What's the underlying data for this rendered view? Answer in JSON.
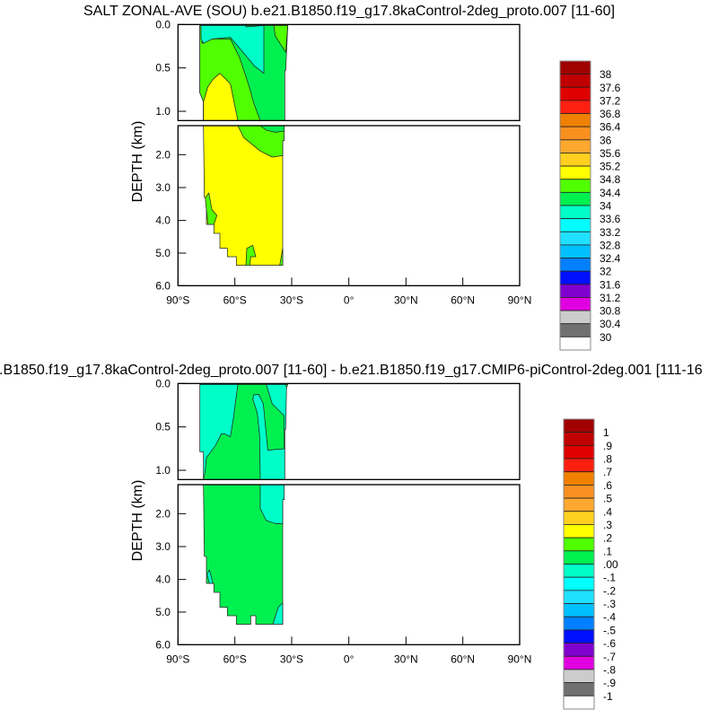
{
  "chart_data": [
    {
      "type": "heatmap",
      "subtype": "filled-contour",
      "title": "SALT ZONAL-AVE (SOU) b.e21.B1850.f19_g17.8kaControl-2deg_proto.007 [11-60]",
      "ylabel": "DEPTH (km)",
      "xlim": [
        -90,
        90
      ],
      "ylim": [
        0,
        6
      ],
      "y_split_km": 1.1,
      "xticks": [
        "90°S",
        "60°S",
        "30°S",
        "0°",
        "30°N",
        "60°N",
        "90°N"
      ],
      "yticks_upper": [
        "0.0",
        "0.5",
        "1.0"
      ],
      "yticks_lower": [
        "2.0",
        "3.0",
        "4.0",
        "5.0",
        "6.0"
      ],
      "colorbar": {
        "labels": [
          "38",
          "37.6",
          "37.2",
          "36.8",
          "36.4",
          "36",
          "35.6",
          "35.2",
          "34.8",
          "34.4",
          "34",
          "33.6",
          "33.2",
          "32.8",
          "32.4",
          "32",
          "31.6",
          "31.2",
          "30.8",
          "30.4",
          "30"
        ],
        "colors": [
          "#A00000",
          "#C00000",
          "#E00000",
          "#FF2010",
          "#F08000",
          "#F89020",
          "#FFA830",
          "#FFD020",
          "#FFFF00",
          "#50FF00",
          "#00F050",
          "#00FFC8",
          "#00FFFF",
          "#20E0FF",
          "#00C0FF",
          "#0080FF",
          "#0010FF",
          "#8000D0",
          "#E000E0",
          "#CCCCCC",
          "#707070",
          "#FFFFFF"
        ]
      }
    },
    {
      "type": "heatmap",
      "subtype": "filled-contour",
      "title": ".B1850.f19_g17.8kaControl-2deg_proto.007 [11-60] - b.e21.B1850.f19_g17.CMIP6-piControl-2deg.001 [111-16",
      "ylabel": "DEPTH (km)",
      "xlim": [
        -90,
        90
      ],
      "ylim": [
        0,
        6
      ],
      "y_split_km": 1.1,
      "xticks": [
        "90°S",
        "60°S",
        "30°S",
        "0°",
        "30°N",
        "60°N",
        "90°N"
      ],
      "yticks_upper": [
        "0.0",
        "0.5",
        "1.0"
      ],
      "yticks_lower": [
        "2.0",
        "3.0",
        "4.0",
        "5.0",
        "6.0"
      ],
      "colorbar": {
        "labels": [
          "1",
          ".9",
          ".8",
          ".7",
          ".6",
          ".5",
          ".4",
          ".3",
          ".2",
          ".1",
          ".00",
          "-.1",
          "-.2",
          "-.3",
          "-.4",
          "-.5",
          "-.6",
          "-.7",
          "-.8",
          "-.9",
          "-1"
        ],
        "colors": [
          "#A00000",
          "#C00000",
          "#E00000",
          "#FF2010",
          "#F08000",
          "#F89020",
          "#FFA830",
          "#FFD020",
          "#FFFF00",
          "#50FF00",
          "#00F050",
          "#00FFC8",
          "#00FFFF",
          "#20E0FF",
          "#00C0FF",
          "#0080FF",
          "#0010FF",
          "#8000D0",
          "#E000E0",
          "#CCCCCC",
          "#707070",
          "#FFFFFF"
        ]
      }
    }
  ]
}
